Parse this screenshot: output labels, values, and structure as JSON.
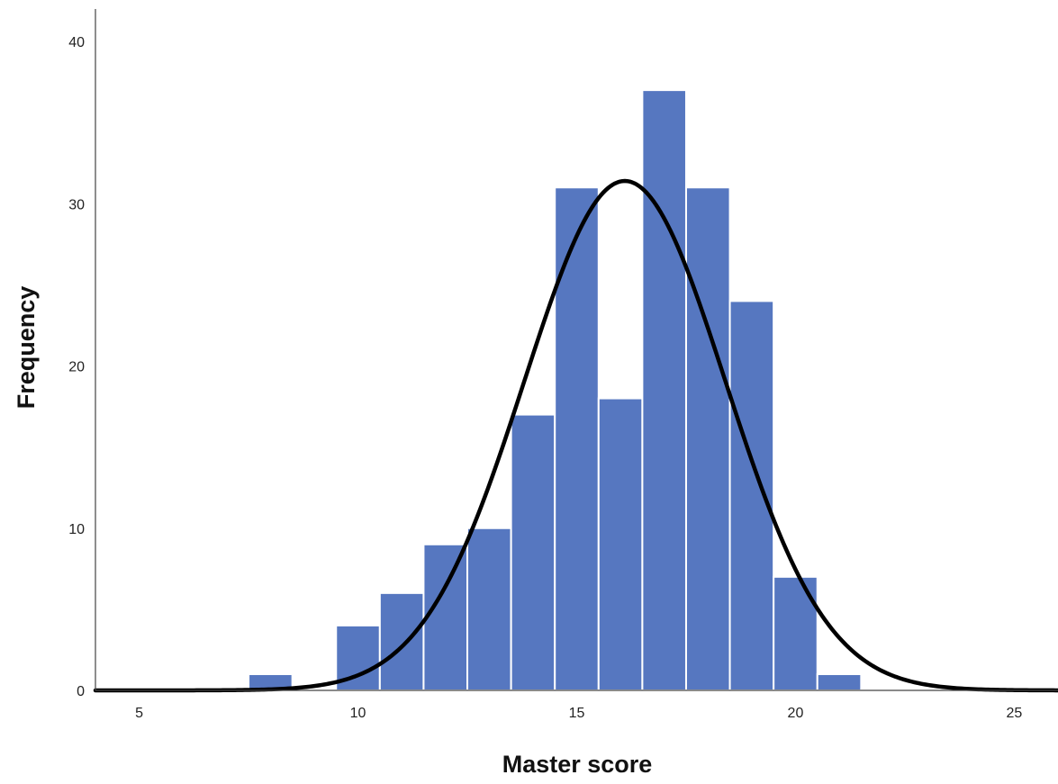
{
  "chart_data": {
    "type": "bar",
    "subtype": "histogram",
    "title": "",
    "xlabel": "Master score",
    "ylabel": "Frequency",
    "xlim": [
      4,
      26
    ],
    "ylim": [
      0,
      42
    ],
    "x_ticks": [
      5,
      10,
      15,
      20,
      25
    ],
    "y_ticks": [
      0,
      10,
      20,
      30,
      40
    ],
    "bin_width": 1,
    "bins": [
      {
        "start": 7.5,
        "end": 8.5,
        "count": 1
      },
      {
        "start": 8.5,
        "end": 9.5,
        "count": 0
      },
      {
        "start": 9.5,
        "end": 10.5,
        "count": 4
      },
      {
        "start": 10.5,
        "end": 11.5,
        "count": 6
      },
      {
        "start": 11.5,
        "end": 12.5,
        "count": 9
      },
      {
        "start": 12.5,
        "end": 13.5,
        "count": 10
      },
      {
        "start": 13.5,
        "end": 14.5,
        "count": 17
      },
      {
        "start": 14.5,
        "end": 15.5,
        "count": 31
      },
      {
        "start": 15.5,
        "end": 16.5,
        "count": 18
      },
      {
        "start": 16.5,
        "end": 17.5,
        "count": 37
      },
      {
        "start": 17.5,
        "end": 18.5,
        "count": 31
      },
      {
        "start": 18.5,
        "end": 19.5,
        "count": 24
      },
      {
        "start": 19.5,
        "end": 20.5,
        "count": 7
      },
      {
        "start": 20.5,
        "end": 21.5,
        "count": 1
      }
    ],
    "normal_curve": {
      "mean": 16.1,
      "sd": 2.3,
      "peak": 31.4
    },
    "grid": false,
    "legend": "none",
    "colors": {
      "bar_fill": "#5677C0",
      "bar_edge": "#ffffff",
      "curve": "#000000",
      "axis": "#444444"
    }
  }
}
